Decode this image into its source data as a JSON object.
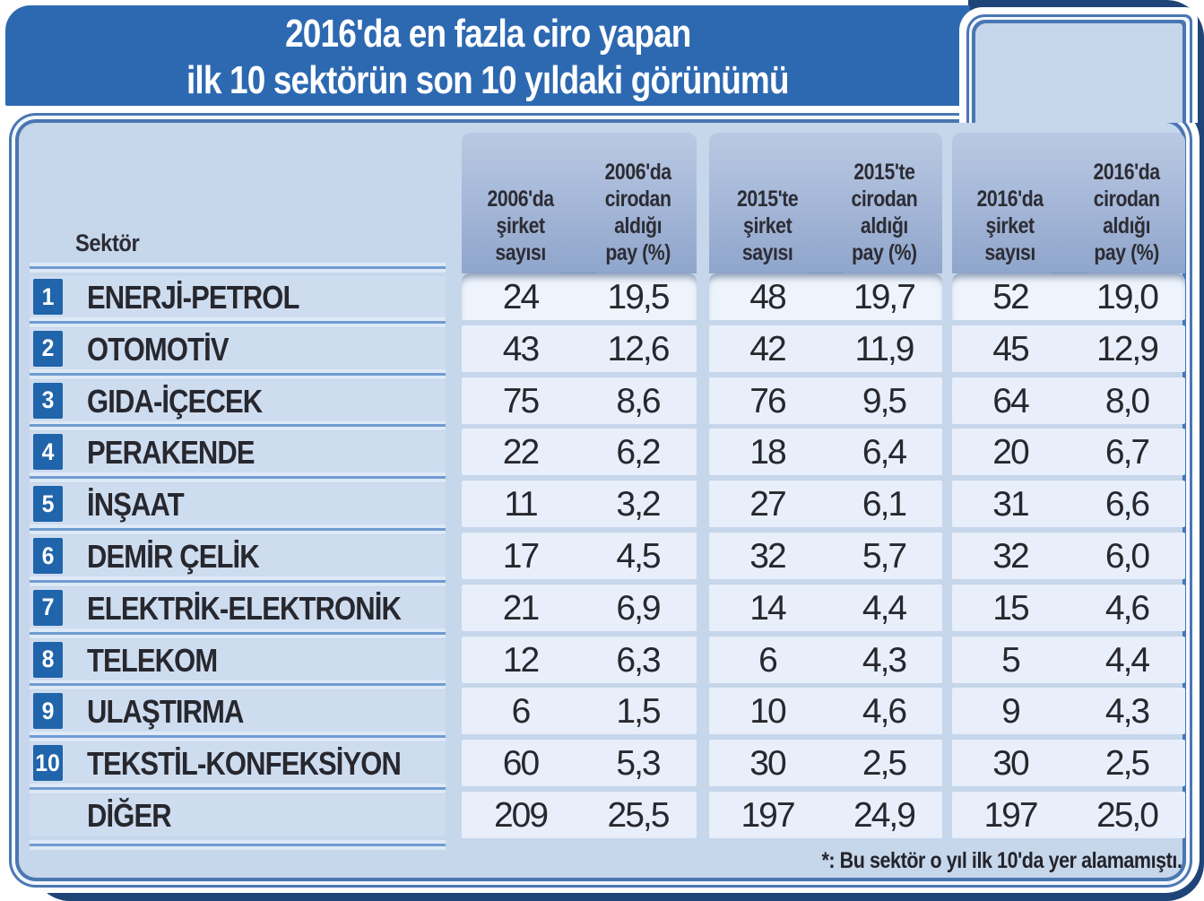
{
  "title": {
    "line1": "2016'da en fazla ciro yapan",
    "line2": "ilk 10 sektörün son 10 yıldaki görünümü"
  },
  "table": {
    "sector_column_header": "Sektör",
    "column_headers": [
      "2006'da\nşirket\nsayısı",
      "2006'da\ncirodan\naldığı\npay (%)",
      "2015'te\nşirket\nsayısı",
      "2015'te\ncirodan\naldığı\npay (%)",
      "2016'da\nşirket\nsayısı",
      "2016'da\ncirodan\naldığı\npay (%)"
    ],
    "rows": [
      {
        "rank": "1",
        "sector": "ENERJİ-PETROL",
        "values": [
          "24",
          "19,5",
          "48",
          "19,7",
          "52",
          "19,0"
        ]
      },
      {
        "rank": "2",
        "sector": "OTOMOTİV",
        "values": [
          "43",
          "12,6",
          "42",
          "11,9",
          "45",
          "12,9"
        ]
      },
      {
        "rank": "3",
        "sector": "GIDA-İÇECEK",
        "values": [
          "75",
          "8,6",
          "76",
          "9,5",
          "64",
          "8,0"
        ]
      },
      {
        "rank": "4",
        "sector": "PERAKENDE",
        "values": [
          "22",
          "6,2",
          "18",
          "6,4",
          "20",
          "6,7"
        ]
      },
      {
        "rank": "5",
        "sector": "İNŞAAT",
        "values": [
          "11",
          "3,2",
          "27",
          "6,1",
          "31",
          "6,6"
        ]
      },
      {
        "rank": "6",
        "sector": "DEMİR ÇELİK",
        "values": [
          "17",
          "4,5",
          "32",
          "5,7",
          "32",
          "6,0"
        ]
      },
      {
        "rank": "7",
        "sector": "ELEKTRİK-ELEKTRONİK",
        "values": [
          "21",
          "6,9",
          "14",
          "4,4",
          "15",
          "4,6"
        ]
      },
      {
        "rank": "8",
        "sector": "TELEKOM",
        "values": [
          "12",
          "6,3",
          "6",
          "4,3",
          "5",
          "4,4"
        ]
      },
      {
        "rank": "9",
        "sector": "ULAŞTIRMA",
        "values": [
          "6",
          "1,5",
          "10",
          "4,6",
          "9",
          "4,3"
        ]
      },
      {
        "rank": "10",
        "sector": "TEKSTİL-KONFEKSİYON",
        "values": [
          "60",
          "5,3",
          "30",
          "2,5",
          "30",
          "2,5"
        ]
      },
      {
        "rank": "",
        "sector": "DİĞER",
        "values": [
          "209",
          "25,5",
          "197",
          "24,9",
          "197",
          "25,0"
        ]
      }
    ],
    "footnote": "*: Bu sektör o yıl ilk 10'da yer alamamıştı."
  },
  "chart_data": {
    "type": "table",
    "title": "2016'da en fazla ciro yapan ilk 10 sektörün son 10 yıldaki görünümü",
    "columns": [
      "Sektör",
      "2006'da şirket sayısı",
      "2006'da cirodan aldığı pay (%)",
      "2015'te şirket sayısı",
      "2015'te cirodan aldığı pay (%)",
      "2016'da şirket sayısı",
      "2016'da cirodan aldığı pay (%)"
    ],
    "rows": [
      [
        "ENERJİ-PETROL",
        24,
        19.5,
        48,
        19.7,
        52,
        19.0
      ],
      [
        "OTOMOTİV",
        43,
        12.6,
        42,
        11.9,
        45,
        12.9
      ],
      [
        "GIDA-İÇECEK",
        75,
        8.6,
        76,
        9.5,
        64,
        8.0
      ],
      [
        "PERAKENDE",
        22,
        6.2,
        18,
        6.4,
        20,
        6.7
      ],
      [
        "İNŞAAT",
        11,
        3.2,
        27,
        6.1,
        31,
        6.6
      ],
      [
        "DEMİR ÇELİK",
        17,
        4.5,
        32,
        5.7,
        32,
        6.0
      ],
      [
        "ELEKTRİK-ELEKTRONİK",
        21,
        6.9,
        14,
        4.4,
        15,
        4.6
      ],
      [
        "TELEKOM",
        12,
        6.3,
        6,
        4.3,
        5,
        4.4
      ],
      [
        "ULAŞTIRMA",
        6,
        1.5,
        10,
        4.6,
        9,
        4.3
      ],
      [
        "TEKSTİL-KONFEKSİYON",
        60,
        5.3,
        30,
        2.5,
        30,
        2.5
      ],
      [
        "DİĞER",
        209,
        25.5,
        197,
        24.9,
        197,
        25.0
      ]
    ],
    "footnote": "*: Bu sektör o yıl ilk 10'da yer alamamıştı.",
    "decimal_separator": ","
  },
  "colors": {
    "title_band": "#2d69b1",
    "outer_frame": "#1e4478",
    "pipe_border": "#4a77b2",
    "panel": "#c6d6eb",
    "header_gradient_top": "#bac9e3",
    "header_gradient_bottom": "#8fa5cb",
    "row_strip": "#e8effa",
    "first_row_strip": "#eef4fc",
    "sector_strip": "#cedcf0",
    "divider_line": "#6f9bd2",
    "rank_badge": "#2064ab",
    "text": "#27272e"
  }
}
